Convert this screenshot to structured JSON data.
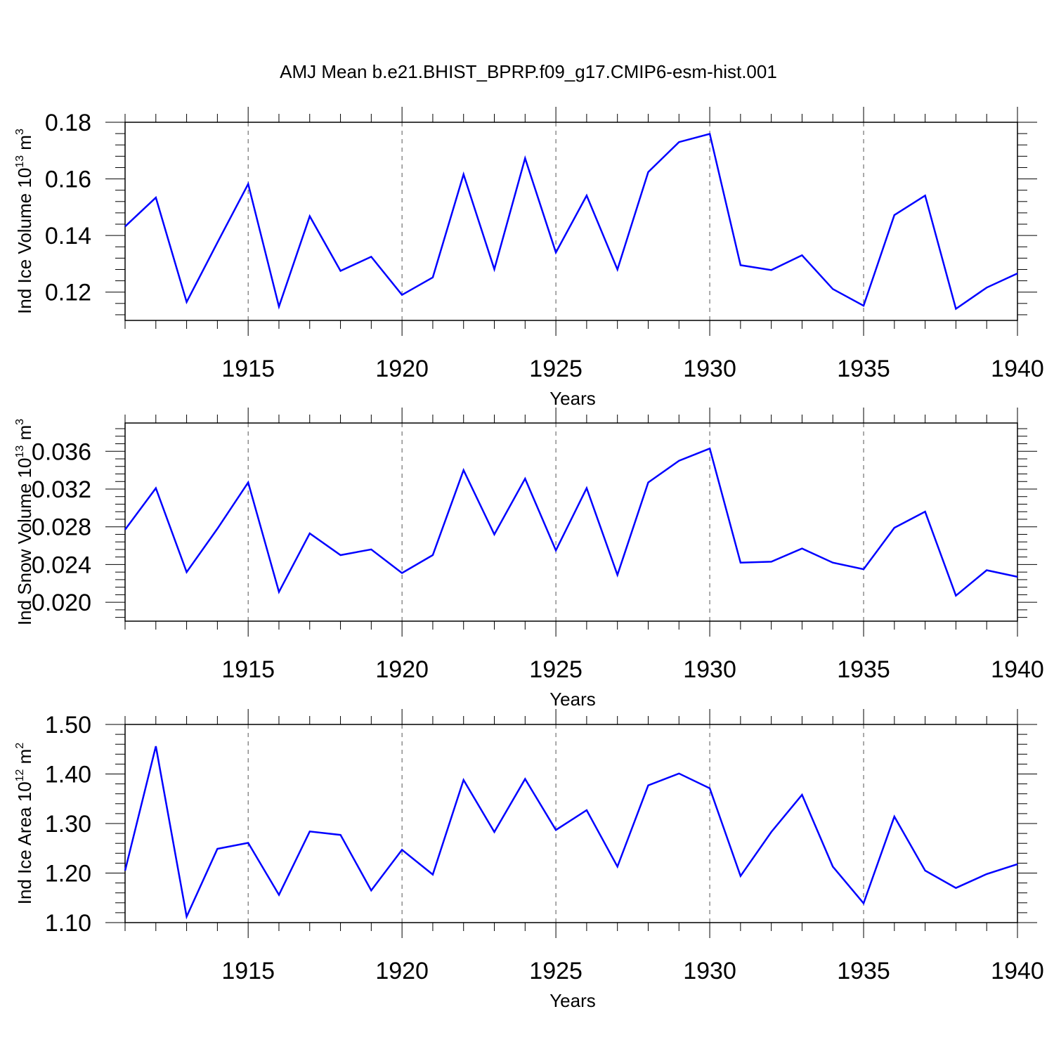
{
  "title": "AMJ Mean b.e21.BHIST_BPRP.f09_g17.CMIP6-esm-hist.001",
  "colors": {
    "series": "#0000ff",
    "axes": "#000000",
    "grid": "#555555"
  },
  "chart_data": [
    {
      "type": "line",
      "ylabel": "Ind Ice Volume 10",
      "ylabel_exp": "13",
      "ylabel_unit": " m",
      "ylabel_unit_exp": "3",
      "xlabel": "Years",
      "xlim": [
        1911,
        1940
      ],
      "ylim": [
        0.11,
        0.18
      ],
      "yticks": [
        0.12,
        0.14,
        0.16,
        0.18
      ],
      "ytick_labels": [
        "0.12",
        "0.14",
        "0.16",
        "0.18"
      ],
      "xticks": [
        1915,
        1920,
        1925,
        1930,
        1935,
        1940
      ],
      "xtick_labels": [
        "1915",
        "1920",
        "1925",
        "1930",
        "1935",
        "1940"
      ],
      "grid": "vertical dashed at major x ticks",
      "x": [
        1911,
        1912,
        1913,
        1914,
        1915,
        1916,
        1917,
        1918,
        1919,
        1920,
        1921,
        1922,
        1923,
        1924,
        1925,
        1926,
        1927,
        1928,
        1929,
        1930,
        1931,
        1932,
        1933,
        1934,
        1935,
        1936,
        1937,
        1938,
        1939,
        1940
      ],
      "series": [
        {
          "values": [
            0.1432,
            0.1534,
            0.1165,
            0.1375,
            0.1582,
            0.1149,
            0.1468,
            0.1275,
            0.1325,
            0.119,
            0.1252,
            0.1616,
            0.1281,
            0.1673,
            0.134,
            0.1541,
            0.128,
            0.1624,
            0.173,
            0.1759,
            0.1295,
            0.1278,
            0.133,
            0.1211,
            0.1152,
            0.1472,
            0.1541,
            0.1141,
            0.1216,
            0.1266
          ]
        }
      ]
    },
    {
      "type": "line",
      "ylabel": "Ind Snow Volume 10",
      "ylabel_exp": "13",
      "ylabel_unit": " m",
      "ylabel_unit_exp": "3",
      "xlabel": "Years",
      "xlim": [
        1911,
        1940
      ],
      "ylim": [
        0.018,
        0.039
      ],
      "yticks": [
        0.02,
        0.024,
        0.028,
        0.032,
        0.036
      ],
      "ytick_labels": [
        "0.020",
        "0.024",
        "0.028",
        "0.032",
        "0.036"
      ],
      "xticks": [
        1915,
        1920,
        1925,
        1930,
        1935,
        1940
      ],
      "xtick_labels": [
        "1915",
        "1920",
        "1925",
        "1930",
        "1935",
        "1940"
      ],
      "grid": "vertical dashed at major x ticks",
      "x": [
        1911,
        1912,
        1913,
        1914,
        1915,
        1916,
        1917,
        1918,
        1919,
        1920,
        1921,
        1922,
        1923,
        1924,
        1925,
        1926,
        1927,
        1928,
        1929,
        1930,
        1931,
        1932,
        1933,
        1934,
        1935,
        1936,
        1937,
        1938,
        1939,
        1940
      ],
      "series": [
        {
          "values": [
            0.0277,
            0.0321,
            0.0232,
            0.0278,
            0.0327,
            0.0211,
            0.0273,
            0.025,
            0.0256,
            0.0231,
            0.025,
            0.034,
            0.0272,
            0.0331,
            0.0255,
            0.0321,
            0.0229,
            0.0327,
            0.035,
            0.0363,
            0.0242,
            0.0243,
            0.0257,
            0.0242,
            0.0235,
            0.0279,
            0.0296,
            0.0207,
            0.0234,
            0.0227
          ]
        }
      ]
    },
    {
      "type": "line",
      "ylabel": "Ind Ice Area 10",
      "ylabel_exp": "12",
      "ylabel_unit": " m",
      "ylabel_unit_exp": "2",
      "xlabel": "Years",
      "xlim": [
        1911,
        1940
      ],
      "ylim": [
        1.1,
        1.5
      ],
      "yticks": [
        1.1,
        1.2,
        1.3,
        1.4,
        1.5
      ],
      "ytick_labels": [
        "1.10",
        "1.20",
        "1.30",
        "1.40",
        "1.50"
      ],
      "xticks": [
        1915,
        1920,
        1925,
        1930,
        1935,
        1940
      ],
      "xtick_labels": [
        "1915",
        "1920",
        "1925",
        "1930",
        "1935",
        "1940"
      ],
      "grid": "vertical dashed at major x ticks",
      "x": [
        1911,
        1912,
        1913,
        1914,
        1915,
        1916,
        1917,
        1918,
        1919,
        1920,
        1921,
        1922,
        1923,
        1924,
        1925,
        1926,
        1927,
        1928,
        1929,
        1930,
        1931,
        1932,
        1933,
        1934,
        1935,
        1936,
        1937,
        1938,
        1939,
        1940
      ],
      "series": [
        {
          "values": [
            1.205,
            1.456,
            1.112,
            1.249,
            1.261,
            1.156,
            1.284,
            1.277,
            1.165,
            1.247,
            1.197,
            1.388,
            1.283,
            1.39,
            1.287,
            1.327,
            1.213,
            1.377,
            1.401,
            1.371,
            1.194,
            1.283,
            1.358,
            1.213,
            1.139,
            1.314,
            1.205,
            1.17,
            1.198,
            1.218
          ]
        }
      ]
    }
  ]
}
